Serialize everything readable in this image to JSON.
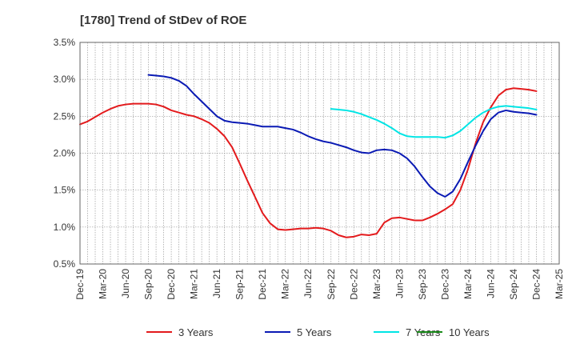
{
  "chart_data": {
    "type": "line",
    "title": "[1780]  Trend of StDev of ROE",
    "xlabel": "",
    "ylabel": "",
    "x_ticks": [
      "Dec-19",
      "Mar-20",
      "Jun-20",
      "Sep-20",
      "Dec-20",
      "Mar-21",
      "Jun-21",
      "Sep-21",
      "Dec-21",
      "Mar-22",
      "Jun-22",
      "Sep-22",
      "Dec-22",
      "Mar-23",
      "Jun-23",
      "Sep-23",
      "Dec-23",
      "Mar-24",
      "Jun-24",
      "Sep-24",
      "Dec-24",
      "Mar-25"
    ],
    "y_ticks": [
      "0.5%",
      "1.0%",
      "1.5%",
      "2.0%",
      "2.5%",
      "3.0%",
      "3.5%"
    ],
    "ylim": [
      0.5,
      3.5
    ],
    "y_unit": "%",
    "grid": true,
    "legend_position": "bottom",
    "series": [
      {
        "name": "3 Years",
        "color": "#e31a1c",
        "x": [
          "Dec-19",
          "Jan-20",
          "Feb-20",
          "Mar-20",
          "Apr-20",
          "May-20",
          "Jun-20",
          "Jul-20",
          "Aug-20",
          "Sep-20",
          "Oct-20",
          "Nov-20",
          "Dec-20",
          "Jan-21",
          "Feb-21",
          "Mar-21",
          "Apr-21",
          "May-21",
          "Jun-21",
          "Jul-21",
          "Aug-21",
          "Sep-21",
          "Oct-21",
          "Nov-21",
          "Dec-21",
          "Jan-22",
          "Feb-22",
          "Mar-22",
          "Apr-22",
          "May-22",
          "Jun-22",
          "Jul-22",
          "Aug-22",
          "Sep-22",
          "Oct-22",
          "Nov-22",
          "Dec-22",
          "Jan-23",
          "Feb-23",
          "Mar-23",
          "Apr-23",
          "May-23",
          "Jun-23",
          "Jul-23",
          "Aug-23",
          "Sep-23",
          "Oct-23",
          "Nov-23",
          "Dec-23",
          "Jan-24",
          "Feb-24",
          "Mar-24",
          "Apr-24",
          "May-24",
          "Jun-24",
          "Jul-24",
          "Aug-24",
          "Sep-24",
          "Oct-24",
          "Nov-24",
          "Dec-24"
        ],
        "values": [
          2.39,
          2.43,
          2.49,
          2.55,
          2.6,
          2.64,
          2.66,
          2.67,
          2.67,
          2.67,
          2.66,
          2.63,
          2.58,
          2.55,
          2.52,
          2.5,
          2.46,
          2.41,
          2.33,
          2.23,
          2.08,
          1.86,
          1.63,
          1.41,
          1.19,
          1.05,
          0.97,
          0.96,
          0.97,
          0.98,
          0.98,
          0.99,
          0.98,
          0.95,
          0.89,
          0.86,
          0.87,
          0.9,
          0.89,
          0.91,
          1.06,
          1.12,
          1.13,
          1.11,
          1.09,
          1.09,
          1.13,
          1.18,
          1.24,
          1.31,
          1.5,
          1.78,
          2.13,
          2.42,
          2.62,
          2.78,
          2.86,
          2.88,
          2.87,
          2.86,
          2.84
        ]
      },
      {
        "name": "5 Years",
        "color": "#0a1ab4",
        "x": [
          "Sep-20",
          "Oct-20",
          "Nov-20",
          "Dec-20",
          "Jan-21",
          "Feb-21",
          "Mar-21",
          "Apr-21",
          "May-21",
          "Jun-21",
          "Jul-21",
          "Aug-21",
          "Sep-21",
          "Oct-21",
          "Nov-21",
          "Dec-21",
          "Jan-22",
          "Feb-22",
          "Mar-22",
          "Apr-22",
          "May-22",
          "Jun-22",
          "Jul-22",
          "Aug-22",
          "Sep-22",
          "Oct-22",
          "Nov-22",
          "Dec-22",
          "Jan-23",
          "Feb-23",
          "Mar-23",
          "Apr-23",
          "May-23",
          "Jun-23",
          "Jul-23",
          "Aug-23",
          "Sep-23",
          "Oct-23",
          "Nov-23",
          "Dec-23",
          "Jan-24",
          "Feb-24",
          "Mar-24",
          "Apr-24",
          "May-24",
          "Jun-24",
          "Jul-24",
          "Aug-24",
          "Sep-24",
          "Oct-24",
          "Nov-24",
          "Dec-24"
        ],
        "values": [
          3.06,
          3.05,
          3.04,
          3.02,
          2.98,
          2.91,
          2.8,
          2.7,
          2.6,
          2.5,
          2.44,
          2.42,
          2.41,
          2.4,
          2.38,
          2.36,
          2.36,
          2.36,
          2.34,
          2.32,
          2.28,
          2.23,
          2.19,
          2.16,
          2.14,
          2.11,
          2.08,
          2.04,
          2.01,
          2.0,
          2.04,
          2.05,
          2.04,
          2.0,
          1.93,
          1.82,
          1.68,
          1.55,
          1.46,
          1.41,
          1.48,
          1.65,
          1.88,
          2.1,
          2.3,
          2.46,
          2.55,
          2.58,
          2.56,
          2.55,
          2.54,
          2.52
        ]
      },
      {
        "name": "7 Years",
        "color": "#00e5e5",
        "x": [
          "Sep-22",
          "Oct-22",
          "Nov-22",
          "Dec-22",
          "Jan-23",
          "Feb-23",
          "Mar-23",
          "Apr-23",
          "May-23",
          "Jun-23",
          "Jul-23",
          "Aug-23",
          "Sep-23",
          "Oct-23",
          "Nov-23",
          "Dec-23",
          "Jan-24",
          "Feb-24",
          "Mar-24",
          "Apr-24",
          "May-24",
          "Jun-24",
          "Jul-24",
          "Aug-24",
          "Sep-24",
          "Oct-24",
          "Nov-24",
          "Dec-24"
        ],
        "values": [
          2.6,
          2.59,
          2.58,
          2.56,
          2.53,
          2.49,
          2.45,
          2.4,
          2.34,
          2.27,
          2.23,
          2.22,
          2.22,
          2.22,
          2.22,
          2.21,
          2.24,
          2.3,
          2.39,
          2.48,
          2.55,
          2.6,
          2.63,
          2.64,
          2.63,
          2.62,
          2.61,
          2.59
        ]
      },
      {
        "name": "10 Years",
        "color": "#1a8c1a",
        "x": [],
        "values": []
      }
    ]
  }
}
